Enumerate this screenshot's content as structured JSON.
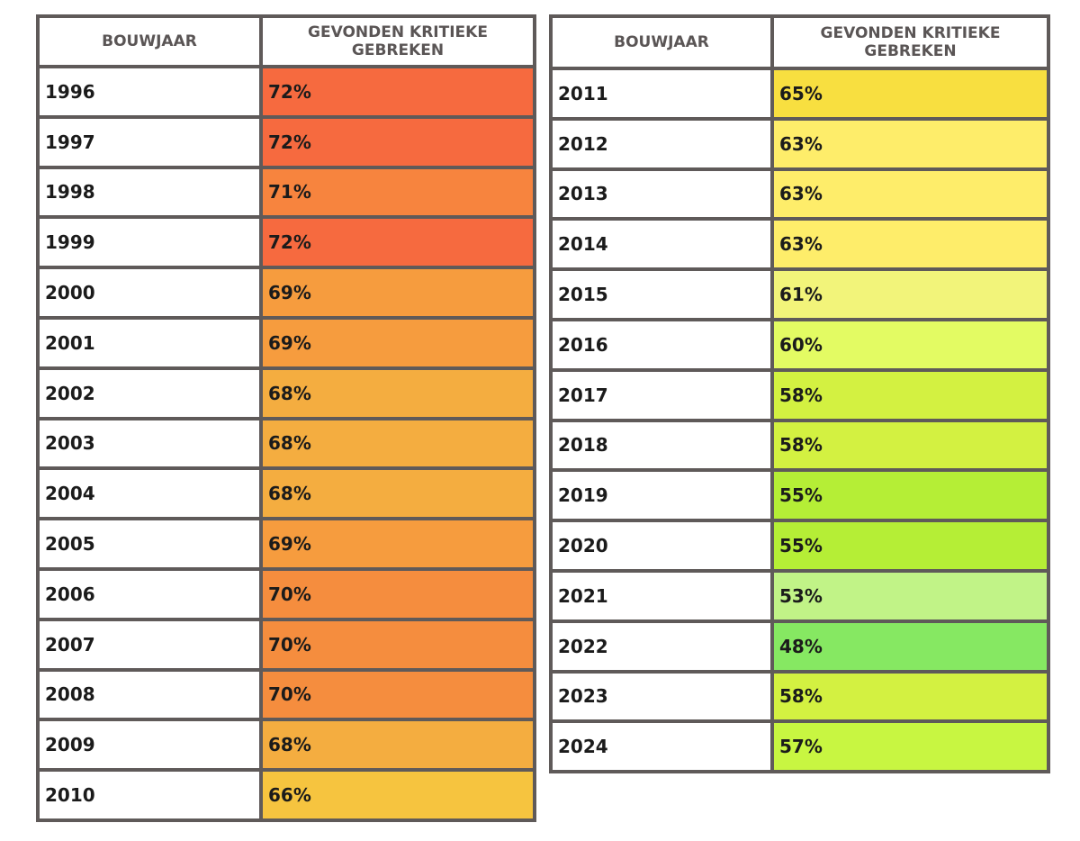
{
  "chart_data": {
    "type": "table",
    "columns": [
      "BOUWJAAR",
      "GEVONDEN KRITIEKE GEBREKEN"
    ],
    "tables": [
      {
        "rows": [
          {
            "year": "1996",
            "value": "72%",
            "color": "#f66a3f"
          },
          {
            "year": "1997",
            "value": "72%",
            "color": "#f66a3f"
          },
          {
            "year": "1998",
            "value": "71%",
            "color": "#f7843e"
          },
          {
            "year": "1999",
            "value": "72%",
            "color": "#f66a3f"
          },
          {
            "year": "2000",
            "value": "69%",
            "color": "#f69c3e"
          },
          {
            "year": "2001",
            "value": "69%",
            "color": "#f69c3e"
          },
          {
            "year": "2002",
            "value": "68%",
            "color": "#f4ad40"
          },
          {
            "year": "2003",
            "value": "68%",
            "color": "#f4ad40"
          },
          {
            "year": "2004",
            "value": "68%",
            "color": "#f4ad40"
          },
          {
            "year": "2005",
            "value": "69%",
            "color": "#f69c3e"
          },
          {
            "year": "2006",
            "value": "70%",
            "color": "#f58d3e"
          },
          {
            "year": "2007",
            "value": "70%",
            "color": "#f58d3e"
          },
          {
            "year": "2008",
            "value": "70%",
            "color": "#f58d3e"
          },
          {
            "year": "2009",
            "value": "68%",
            "color": "#f4ad40"
          },
          {
            "year": "2010",
            "value": "66%",
            "color": "#f6c43f"
          }
        ]
      },
      {
        "rows": [
          {
            "year": "2011",
            "value": "65%",
            "color": "#f8df40"
          },
          {
            "year": "2012",
            "value": "63%",
            "color": "#feed6a"
          },
          {
            "year": "2013",
            "value": "63%",
            "color": "#feed6a"
          },
          {
            "year": "2014",
            "value": "63%",
            "color": "#feed6a"
          },
          {
            "year": "2015",
            "value": "61%",
            "color": "#f2f47a"
          },
          {
            "year": "2016",
            "value": "60%",
            "color": "#e3fb63"
          },
          {
            "year": "2017",
            "value": "58%",
            "color": "#d3f141"
          },
          {
            "year": "2018",
            "value": "58%",
            "color": "#d3f141"
          },
          {
            "year": "2019",
            "value": "55%",
            "color": "#b5ee36"
          },
          {
            "year": "2020",
            "value": "55%",
            "color": "#b5ee36"
          },
          {
            "year": "2021",
            "value": "53%",
            "color": "#c1f387"
          },
          {
            "year": "2022",
            "value": "48%",
            "color": "#86e862"
          },
          {
            "year": "2023",
            "value": "58%",
            "color": "#d3f141"
          },
          {
            "year": "2024",
            "value": "57%",
            "color": "#c8f641"
          }
        ]
      }
    ]
  }
}
